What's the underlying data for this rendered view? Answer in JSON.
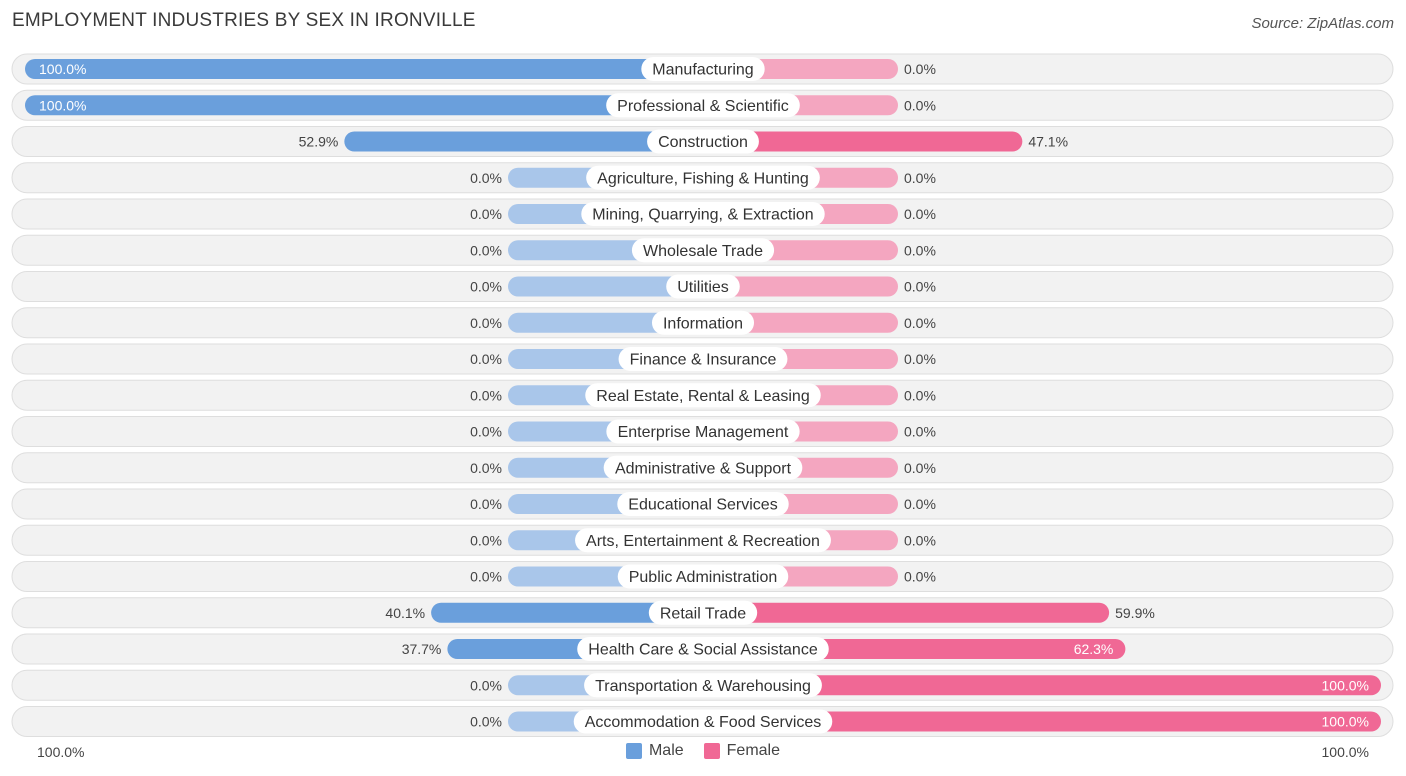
{
  "title": "EMPLOYMENT INDUSTRIES BY SEX IN IRONVILLE",
  "source": "Source: ZipAtlas.com",
  "colors": {
    "male": "#6a9fdc",
    "male_light": "#a9c6ea",
    "female": "#f06895",
    "female_light": "#f4a6c0"
  },
  "legend": {
    "male": "Male",
    "female": "Female"
  },
  "axis": {
    "left": "100.0%",
    "right": "100.0%"
  },
  "chart_data": {
    "type": "bar",
    "orientation": "horizontal-diverging",
    "title": "EMPLOYMENT INDUSTRIES BY SEX IN IRONVILLE",
    "xlim": [
      -100,
      100
    ],
    "categories": [
      "Manufacturing",
      "Professional & Scientific",
      "Construction",
      "Agriculture, Fishing & Hunting",
      "Mining, Quarrying, & Extraction",
      "Wholesale Trade",
      "Utilities",
      "Information",
      "Finance & Insurance",
      "Real Estate, Rental & Leasing",
      "Enterprise Management",
      "Administrative & Support",
      "Educational Services",
      "Arts, Entertainment & Recreation",
      "Public Administration",
      "Retail Trade",
      "Health Care & Social Assistance",
      "Transportation & Warehousing",
      "Accommodation & Food Services"
    ],
    "series": [
      {
        "name": "Male",
        "values": [
          100.0,
          100.0,
          52.9,
          0.0,
          0.0,
          0.0,
          0.0,
          0.0,
          0.0,
          0.0,
          0.0,
          0.0,
          0.0,
          0.0,
          0.0,
          40.1,
          37.7,
          0.0,
          0.0
        ],
        "labels": [
          "100.0%",
          "100.0%",
          "52.9%",
          "0.0%",
          "0.0%",
          "0.0%",
          "0.0%",
          "0.0%",
          "0.0%",
          "0.0%",
          "0.0%",
          "0.0%",
          "0.0%",
          "0.0%",
          "0.0%",
          "40.1%",
          "37.7%",
          "0.0%",
          "0.0%"
        ]
      },
      {
        "name": "Female",
        "values": [
          0.0,
          0.0,
          47.1,
          0.0,
          0.0,
          0.0,
          0.0,
          0.0,
          0.0,
          0.0,
          0.0,
          0.0,
          0.0,
          0.0,
          0.0,
          59.9,
          62.3,
          100.0,
          100.0
        ],
        "labels": [
          "0.0%",
          "0.0%",
          "47.1%",
          "0.0%",
          "0.0%",
          "0.0%",
          "0.0%",
          "0.0%",
          "0.0%",
          "0.0%",
          "0.0%",
          "0.0%",
          "0.0%",
          "0.0%",
          "0.0%",
          "59.9%",
          "62.3%",
          "100.0%",
          "100.0%"
        ]
      }
    ]
  }
}
